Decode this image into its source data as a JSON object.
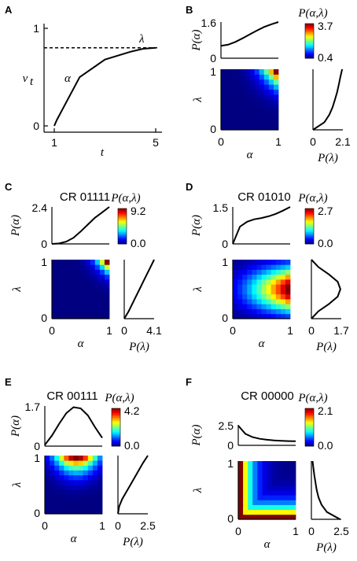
{
  "chart_data": [
    {
      "panel": "A",
      "type": "line",
      "xlabel": "t",
      "ylabel": "v",
      "ylabel_sub": "t",
      "xticks": [
        "1",
        "5"
      ],
      "yticks": [
        "0",
        "1"
      ],
      "xlim": [
        1,
        5
      ],
      "ylim": [
        0,
        1
      ],
      "x": [
        1.0,
        1.1,
        2.0,
        3.0,
        4.0,
        4.5,
        5.0
      ],
      "values": [
        0.0,
        0.06,
        0.5,
        0.68,
        0.76,
        0.79,
        0.8
      ],
      "asymptote": 0.8,
      "annotations": [
        "α",
        "λ"
      ]
    },
    {
      "panel": "B",
      "title": "",
      "type": "heatmap",
      "colorscale": "jet",
      "cbar_label": "P(α,λ)",
      "cbar_ticks": [
        "3.7",
        "0.4"
      ],
      "cbar_range": [
        0.4,
        3.7
      ],
      "marg_alpha_label": "P(α)",
      "marg_alpha_ticks": [
        "1.6",
        "0"
      ],
      "marg_alpha_ymax": 1.6,
      "marg_alpha_values": [
        0.55,
        0.6,
        0.72,
        0.88,
        1.05,
        1.22,
        1.38,
        1.5,
        1.6
      ],
      "marg_lambda_label": "P(λ)",
      "marg_lambda_ticks": [
        "0",
        "2.1"
      ],
      "marg_lambda_xmax": 2.1,
      "marg_lambda_values": [
        0.0,
        0.8,
        1.15,
        1.38,
        1.55,
        1.7,
        1.82,
        1.93,
        2.05
      ],
      "xlabel": "α",
      "ylabel": "λ",
      "xticks": [
        "0",
        "1"
      ],
      "yticks": [
        "0",
        "1"
      ],
      "func": "power",
      "params": [
        4,
        4
      ]
    },
    {
      "panel": "C",
      "title": "CR 01111",
      "type": "heatmap",
      "colorscale": "jet",
      "cbar_label": "P(α,λ)",
      "cbar_ticks": [
        "9.2",
        "0.0"
      ],
      "cbar_range": [
        0.0,
        9.2
      ],
      "marg_alpha_label": "P(α)",
      "marg_alpha_ticks": [
        "2.4",
        "0"
      ],
      "marg_alpha_ymax": 2.4,
      "marg_alpha_values": [
        0.0,
        0.03,
        0.15,
        0.4,
        0.8,
        1.25,
        1.7,
        2.05,
        2.4
      ],
      "marg_lambda_label": "P(λ)",
      "marg_lambda_ticks": [
        "0",
        "4.1"
      ],
      "marg_lambda_xmax": 4.1,
      "marg_lambda_values": [
        0.0,
        0.6,
        1.1,
        1.6,
        2.1,
        2.6,
        3.1,
        3.6,
        4.1
      ],
      "xlabel": "α",
      "ylabel": "λ",
      "xticks": [
        "0",
        "1"
      ],
      "yticks": [
        "0",
        "1"
      ],
      "func": "power",
      "params": [
        6,
        6
      ]
    },
    {
      "panel": "D",
      "title": "CR 01010",
      "type": "heatmap",
      "colorscale": "jet",
      "cbar_label": "P(α,λ)",
      "cbar_ticks": [
        "2.7",
        "0.0"
      ],
      "cbar_range": [
        0.0,
        2.7
      ],
      "marg_alpha_label": "P(α)",
      "marg_alpha_ticks": [
        "1.5",
        "0"
      ],
      "marg_alpha_ymax": 1.5,
      "marg_alpha_values": [
        0.0,
        0.7,
        0.9,
        1.0,
        1.05,
        1.12,
        1.22,
        1.35,
        1.5
      ],
      "marg_lambda_label": "P(λ)",
      "marg_lambda_ticks": [
        "0",
        "1.7"
      ],
      "marg_lambda_xmax": 1.7,
      "marg_lambda_values": [
        0.0,
        0.4,
        1.0,
        1.5,
        1.65,
        1.5,
        1.0,
        0.4,
        0.0
      ],
      "xlabel": "α",
      "ylabel": "λ",
      "xticks": [
        "0",
        "1"
      ],
      "yticks": [
        "0",
        "1"
      ],
      "func": "band",
      "params": [
        0.5,
        0.25
      ]
    },
    {
      "panel": "E",
      "title": "CR 00111",
      "type": "heatmap",
      "colorscale": "jet",
      "cbar_label": "P(α,λ)",
      "cbar_ticks": [
        "4.2",
        "0.0"
      ],
      "cbar_range": [
        0.0,
        4.2
      ],
      "marg_alpha_label": "P(α)",
      "marg_alpha_ticks": [
        "1.7",
        "0"
      ],
      "marg_alpha_ymax": 1.7,
      "marg_alpha_values": [
        0.05,
        0.45,
        0.95,
        1.4,
        1.65,
        1.6,
        1.3,
        0.8,
        0.35
      ],
      "marg_lambda_label": "P(λ)",
      "marg_lambda_ticks": [
        "0",
        "2.5"
      ],
      "marg_lambda_xmax": 2.5,
      "marg_lambda_values": [
        0.0,
        0.1,
        0.35,
        0.7,
        1.05,
        1.4,
        1.75,
        2.1,
        2.5
      ],
      "xlabel": "α",
      "ylabel": "λ",
      "xticks": [
        "0",
        "1"
      ],
      "yticks": [
        "0",
        "1"
      ],
      "func": "arch",
      "params": [
        0.55,
        0.25,
        4
      ]
    },
    {
      "panel": "F",
      "title": "CR 00000",
      "type": "heatmap",
      "colorscale": "jet",
      "cbar_label": "P(α,λ)",
      "cbar_ticks": [
        "2.1",
        "0.0"
      ],
      "cbar_range": [
        0.0,
        2.1
      ],
      "marg_alpha_label": "P(α)",
      "marg_alpha_ticks": [
        "2.5",
        "0"
      ],
      "marg_alpha_ymax": 2.5,
      "marg_alpha_values": [
        2.4,
        1.4,
        1.0,
        0.8,
        0.68,
        0.6,
        0.55,
        0.52,
        0.5
      ],
      "marg_lambda_label": "P(λ)",
      "marg_lambda_ticks": [
        "0",
        "2.5"
      ],
      "marg_lambda_xmax": 2.5,
      "marg_lambda_values": [
        2.4,
        1.3,
        0.85,
        0.6,
        0.45,
        0.35,
        0.25,
        0.17,
        0.1
      ],
      "xlabel": "α",
      "ylabel": "λ",
      "xticks": [
        "0",
        "1"
      ],
      "yticks": [
        "0",
        "1"
      ],
      "func": "corner",
      "params": [
        0.18
      ]
    }
  ]
}
